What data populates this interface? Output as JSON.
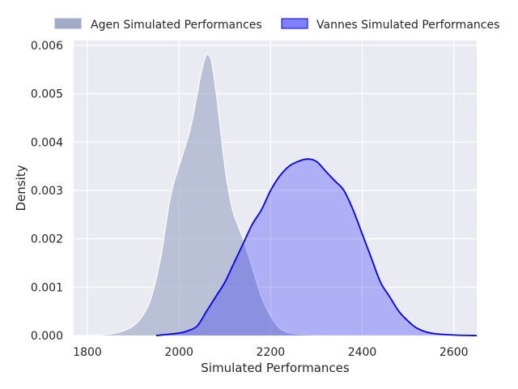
{
  "chart_data": {
    "type": "area",
    "title": "",
    "xlabel": "Simulated Performances",
    "ylabel": "Density",
    "xlim": [
      1770,
      2650
    ],
    "ylim": [
      0,
      0.0061
    ],
    "xticks": [
      1800,
      2000,
      2200,
      2400,
      2600
    ],
    "yticks": [
      0.0,
      0.001,
      0.002,
      0.003,
      0.004,
      0.005,
      0.006
    ],
    "ytick_labels": [
      "0.000",
      "0.001",
      "0.002",
      "0.003",
      "0.004",
      "0.005",
      "0.006"
    ],
    "grid": true,
    "legend_position": "top, outside plot",
    "series": [
      {
        "name": "Agen Simulated Performances",
        "fill_color": "#9fabc7",
        "line_color": "#ffffff",
        "x": [
          1800,
          1850,
          1880,
          1900,
          1920,
          1940,
          1960,
          1970,
          1980,
          1990,
          2000,
          2010,
          2020,
          2030,
          2040,
          2050,
          2060,
          2070,
          2080,
          2090,
          2100,
          2110,
          2120,
          2140,
          2160,
          2180,
          2200,
          2220,
          2240,
          2260,
          2300,
          2350
        ],
        "values": [
          0.0,
          3e-05,
          0.0001,
          0.0002,
          0.0004,
          0.0008,
          0.0016,
          0.0022,
          0.0028,
          0.0032,
          0.0035,
          0.0038,
          0.0041,
          0.0045,
          0.005,
          0.0055,
          0.0058,
          0.0057,
          0.0051,
          0.0043,
          0.0035,
          0.0029,
          0.0025,
          0.002,
          0.0014,
          0.0008,
          0.0004,
          0.00015,
          6e-05,
          3e-05,
          1e-05,
          0.0
        ]
      },
      {
        "name": "Vannes Simulated Performances",
        "fill_color": "#0000ff",
        "line_color": "#0000ff",
        "x": [
          1950,
          2000,
          2020,
          2040,
          2060,
          2080,
          2100,
          2120,
          2140,
          2160,
          2180,
          2200,
          2220,
          2240,
          2260,
          2280,
          2300,
          2320,
          2340,
          2360,
          2380,
          2400,
          2420,
          2440,
          2460,
          2480,
          2500,
          2520,
          2550,
          2600,
          2650
        ],
        "values": [
          0.0,
          5e-05,
          0.0001,
          0.0002,
          0.0005,
          0.0008,
          0.0011,
          0.0015,
          0.0019,
          0.0023,
          0.0026,
          0.003,
          0.0033,
          0.0035,
          0.0036,
          0.00365,
          0.0036,
          0.0034,
          0.0032,
          0.003,
          0.0026,
          0.0021,
          0.0016,
          0.0011,
          0.0008,
          0.0005,
          0.0003,
          0.00015,
          5e-05,
          1e-05,
          0.0
        ]
      }
    ]
  }
}
